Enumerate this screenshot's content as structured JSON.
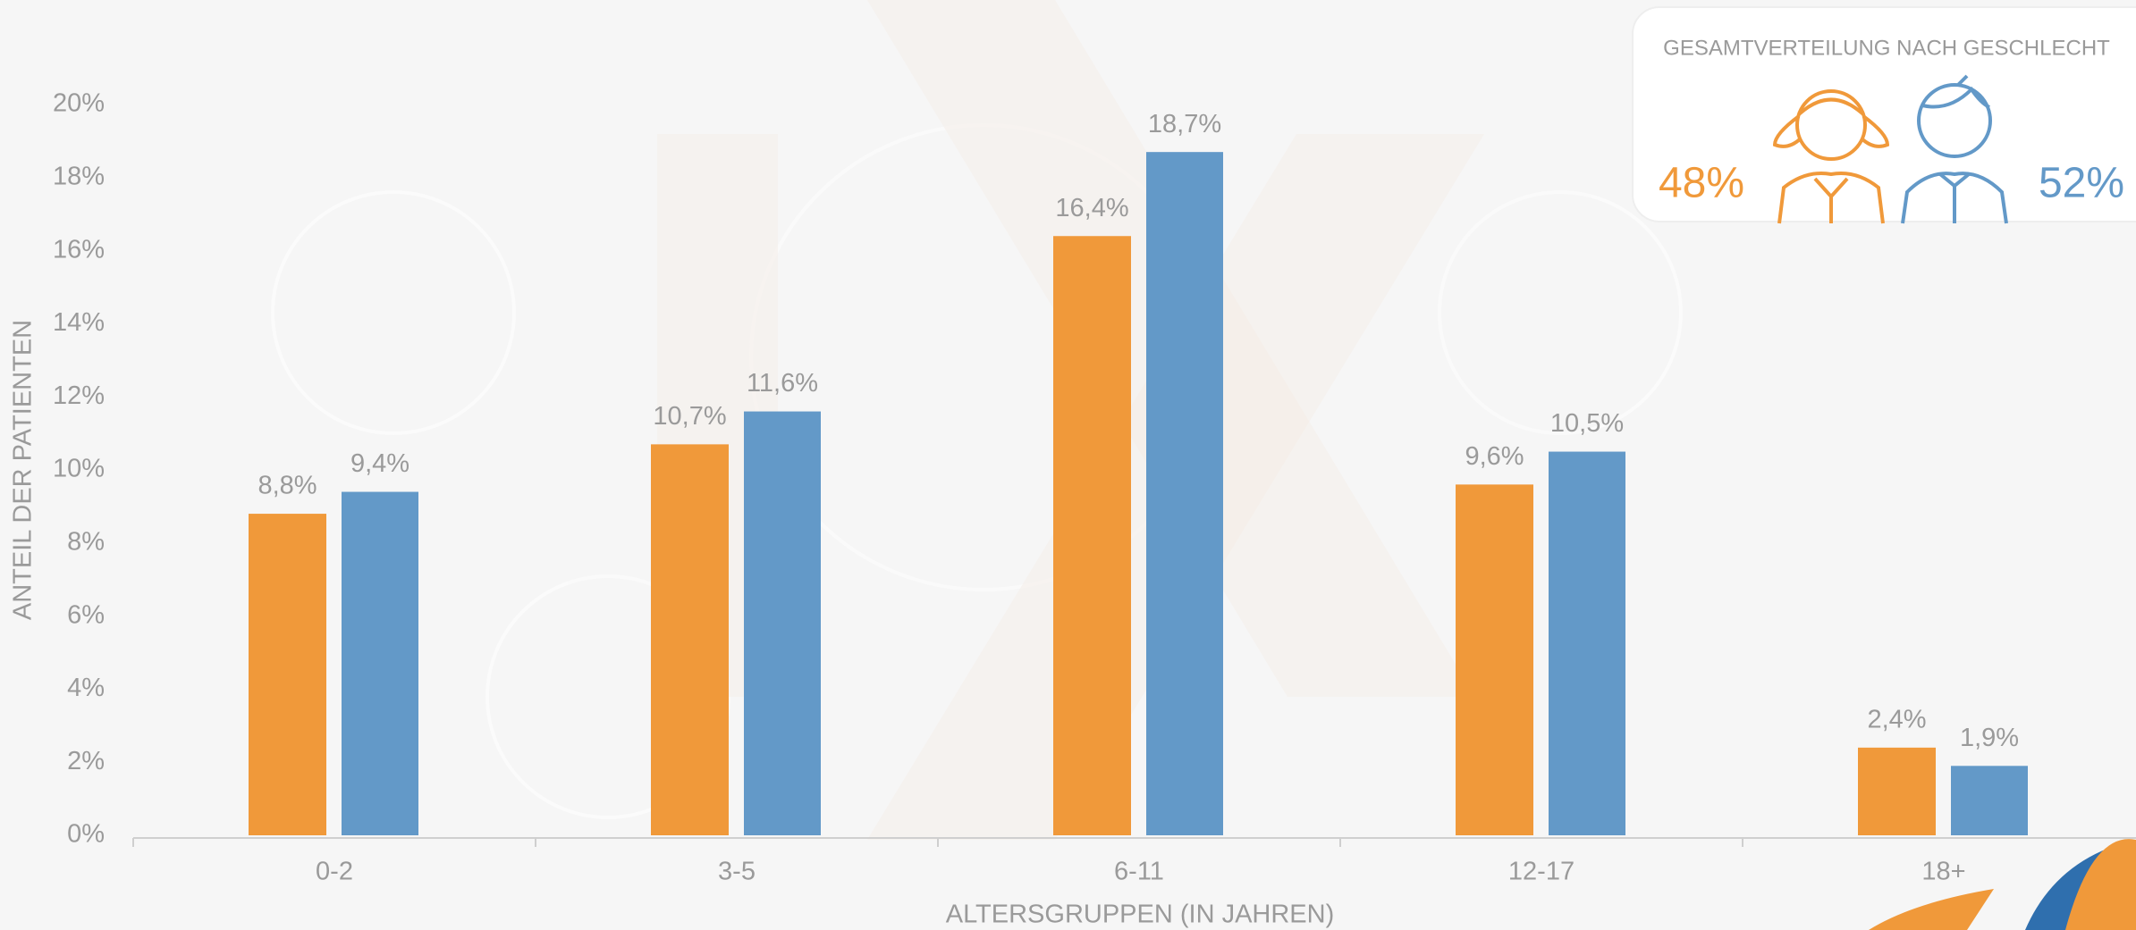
{
  "chart_data": {
    "type": "bar",
    "y_label": "ANTEIL DER PATIENTEN",
    "x_label": "ALTERSGRUPPEN (IN JAHREN)",
    "categories": [
      "0-2",
      "3-5",
      "6-11",
      "12-17",
      "18+"
    ],
    "series": [
      {
        "color": "#f0993a",
        "values": [
          8.8,
          10.7,
          16.4,
          9.6,
          2.4
        ],
        "value_labels": [
          "8,8%",
          "10,7%",
          "16,4%",
          "9,6%",
          "2,4%"
        ]
      },
      {
        "color": "#6399c8",
        "values": [
          9.4,
          11.6,
          18.7,
          10.5,
          1.9
        ],
        "value_labels": [
          "9,4%",
          "11,6%",
          "18,7%",
          "10,5%",
          "1,9%"
        ]
      }
    ],
    "ylim": [
      0,
      20
    ],
    "yticks": [
      {
        "value": 0,
        "label": "0%"
      },
      {
        "value": 2,
        "label": "2%"
      },
      {
        "value": 4,
        "label": "4%"
      },
      {
        "value": 6,
        "label": "6%"
      },
      {
        "value": 8,
        "label": "8%"
      },
      {
        "value": 10,
        "label": "10%"
      },
      {
        "value": 12,
        "label": "12%"
      },
      {
        "value": 14,
        "label": "14%"
      },
      {
        "value": 16,
        "label": "16%"
      },
      {
        "value": 18,
        "label": "18%"
      },
      {
        "value": 20,
        "label": "20%"
      }
    ],
    "grid": false
  },
  "inset": {
    "title": "GESAMTVERTEILUNG NACH GESCHLECHT",
    "female": "48%",
    "male": "52%",
    "female_color": "#f0993a",
    "male_color": "#6399c8"
  }
}
